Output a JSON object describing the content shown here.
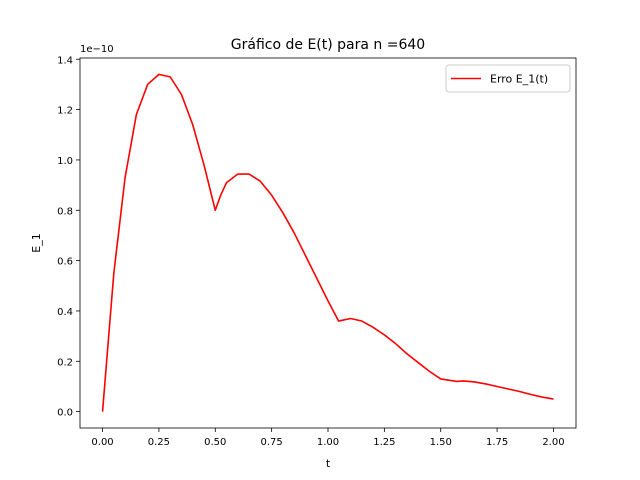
{
  "chart_data": {
    "type": "line",
    "title": "Gráfico de E(t) para n =640",
    "xlabel": "t",
    "ylabel": "E_1",
    "y_scale_label": "1e−10",
    "xlim": [
      -0.1,
      2.1
    ],
    "ylim": [
      -0.065,
      1.405
    ],
    "x_ticks": [
      0.0,
      0.25,
      0.5,
      0.75,
      1.0,
      1.25,
      1.5,
      1.75,
      2.0
    ],
    "x_tick_labels": [
      "0.00",
      "0.25",
      "0.50",
      "0.75",
      "1.00",
      "1.25",
      "1.50",
      "1.75",
      "2.00"
    ],
    "y_ticks": [
      0.0,
      0.2,
      0.4,
      0.6,
      0.8,
      1.0,
      1.2,
      1.4
    ],
    "y_tick_labels": [
      "0.0",
      "0.2",
      "0.4",
      "0.6",
      "0.8",
      "1.0",
      "1.2",
      "1.4"
    ],
    "grid": false,
    "legend_position": "top-right",
    "series": [
      {
        "name": "Erro E_1(t)",
        "color": "#ff0000",
        "x": [
          0.0,
          0.05,
          0.1,
          0.15,
          0.2,
          0.25,
          0.3,
          0.35,
          0.4,
          0.45,
          0.5,
          0.524,
          0.55,
          0.6,
          0.65,
          0.7,
          0.75,
          0.8,
          0.85,
          0.9,
          0.95,
          1.0,
          1.047,
          1.1,
          1.15,
          1.2,
          1.25,
          1.3,
          1.35,
          1.4,
          1.45,
          1.5,
          1.571,
          1.6,
          1.65,
          1.7,
          1.75,
          1.8,
          1.85,
          1.9,
          1.95,
          2.0
        ],
        "y": [
          0.0,
          0.55,
          0.93,
          1.18,
          1.3,
          1.34,
          1.33,
          1.26,
          1.14,
          0.98,
          0.8,
          0.86,
          0.91,
          0.944,
          0.944,
          0.915,
          0.86,
          0.79,
          0.71,
          0.62,
          0.53,
          0.44,
          0.36,
          0.37,
          0.36,
          0.335,
          0.305,
          0.27,
          0.23,
          0.195,
          0.16,
          0.13,
          0.12,
          0.122,
          0.118,
          0.11,
          0.1,
          0.09,
          0.08,
          0.068,
          0.058,
          0.05
        ]
      }
    ]
  }
}
